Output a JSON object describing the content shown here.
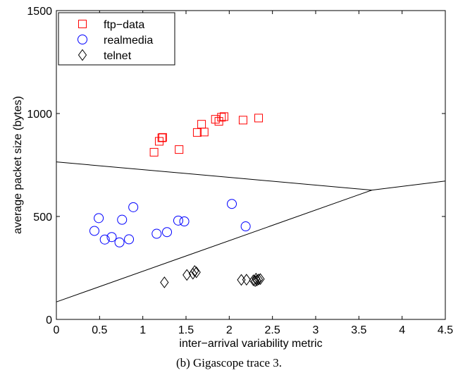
{
  "chart_data": {
    "type": "scatter",
    "xlabel": "inter−arrival variability metric",
    "ylabel": "average packet size (bytes)",
    "xlim": [
      0,
      4.5
    ],
    "ylim": [
      0,
      1500
    ],
    "xticks": [
      0,
      0.5,
      1,
      1.5,
      2,
      2.5,
      3,
      3.5,
      4,
      4.5
    ],
    "xtick_labels": [
      "0",
      "0.5",
      "1",
      "1.5",
      "2",
      "2.5",
      "3",
      "3.5",
      "4",
      "4.5"
    ],
    "yticks": [
      0,
      500,
      1000,
      1500
    ],
    "ytick_labels": [
      "0",
      "500",
      "1000",
      "1500"
    ],
    "grid": false,
    "legend_position": "top-left",
    "series": [
      {
        "name": "ftp−data",
        "marker": "square",
        "color": "#ff0000",
        "points": [
          [
            1.13,
            812
          ],
          [
            1.19,
            865
          ],
          [
            1.22,
            882
          ],
          [
            1.23,
            884
          ],
          [
            1.42,
            825
          ],
          [
            1.63,
            908
          ],
          [
            1.68,
            948
          ],
          [
            1.71,
            910
          ],
          [
            1.84,
            972
          ],
          [
            1.88,
            962
          ],
          [
            1.91,
            982
          ],
          [
            1.94,
            985
          ],
          [
            2.16,
            968
          ],
          [
            2.34,
            978
          ]
        ]
      },
      {
        "name": "realmedia",
        "marker": "circle",
        "color": "#0000ff",
        "points": [
          [
            0.44,
            430
          ],
          [
            0.49,
            492
          ],
          [
            0.56,
            388
          ],
          [
            0.64,
            400
          ],
          [
            0.73,
            374
          ],
          [
            0.76,
            484
          ],
          [
            0.84,
            389
          ],
          [
            0.89,
            545
          ],
          [
            1.16,
            416
          ],
          [
            1.28,
            424
          ],
          [
            1.41,
            480
          ],
          [
            1.48,
            476
          ],
          [
            2.03,
            561
          ],
          [
            2.19,
            452
          ]
        ]
      },
      {
        "name": "telnet",
        "marker": "diamond",
        "color": "#000000",
        "points": [
          [
            1.25,
            180
          ],
          [
            1.51,
            216
          ],
          [
            1.58,
            222
          ],
          [
            1.6,
            235
          ],
          [
            1.62,
            229
          ],
          [
            2.14,
            192
          ],
          [
            2.2,
            193
          ],
          [
            2.28,
            190
          ],
          [
            2.3,
            186
          ],
          [
            2.31,
            198
          ],
          [
            2.32,
            189
          ],
          [
            2.34,
            194
          ],
          [
            2.36,
            196
          ]
        ]
      }
    ],
    "boundaries": [
      {
        "color": "#000000",
        "points": [
          [
            0,
            765
          ],
          [
            3.65,
            628
          ],
          [
            4.5,
            672
          ]
        ]
      },
      {
        "color": "#000000",
        "points": [
          [
            0,
            85
          ],
          [
            3.65,
            628
          ]
        ]
      }
    ]
  },
  "caption": "(b) Gigascope trace 3."
}
